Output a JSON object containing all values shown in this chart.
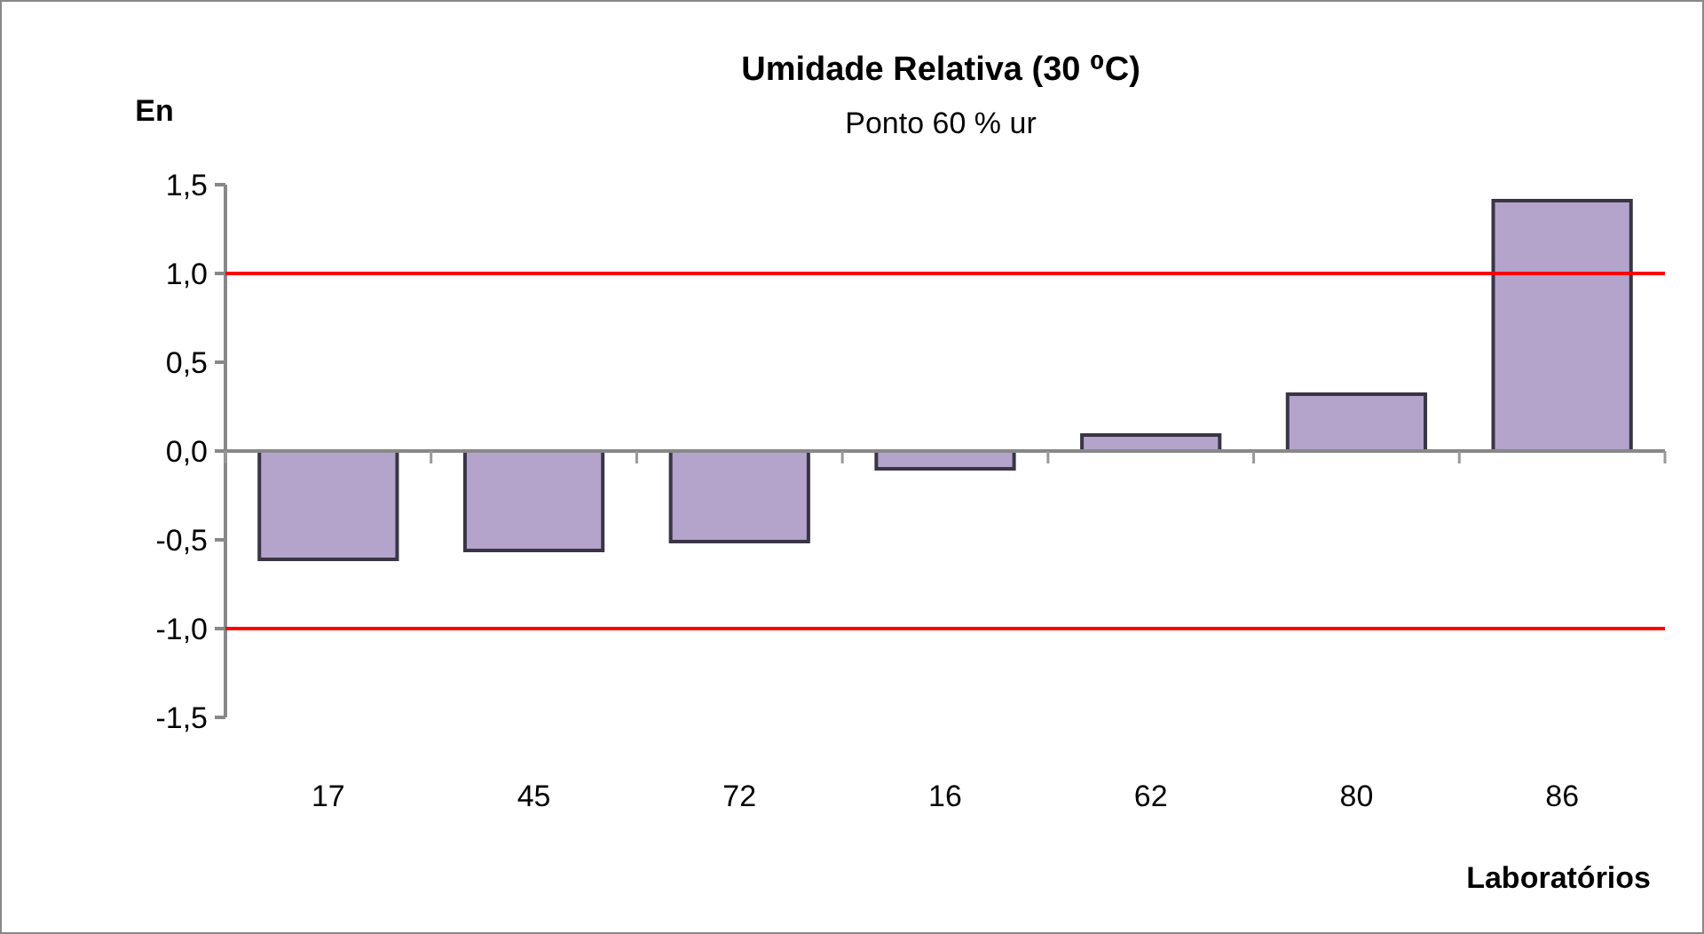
{
  "chart_data": {
    "type": "bar",
    "title": "Umidade Relativa (30 ⁰C)",
    "subtitle": "Ponto 60 % ur",
    "ylabel": "En",
    "xlabel": "Laboratórios",
    "categories": [
      "17",
      "45",
      "72",
      "16",
      "62",
      "80",
      "86"
    ],
    "values": [
      -0.61,
      -0.56,
      -0.51,
      -0.1,
      0.09,
      0.32,
      1.41
    ],
    "color": "#b4a3cb",
    "ylim": [
      -1.5,
      1.5
    ],
    "yticks": [
      {
        "value": -1.5,
        "label": "-1,5"
      },
      {
        "value": -1,
        "label": "-1,0"
      },
      {
        "value": -0.5,
        "label": "-0,5"
      },
      {
        "value": 0,
        "label": "0,0"
      },
      {
        "value": 0.5,
        "label": "0,5"
      },
      {
        "value": 1,
        "label": "1,0"
      },
      {
        "value": 1.5,
        "label": "1,5"
      }
    ],
    "ref_lines": [
      {
        "axis": "y",
        "value": 1,
        "color": "#ff0000"
      },
      {
        "axis": "y",
        "value": -1,
        "color": "#ff0000"
      }
    ],
    "grid": false
  }
}
